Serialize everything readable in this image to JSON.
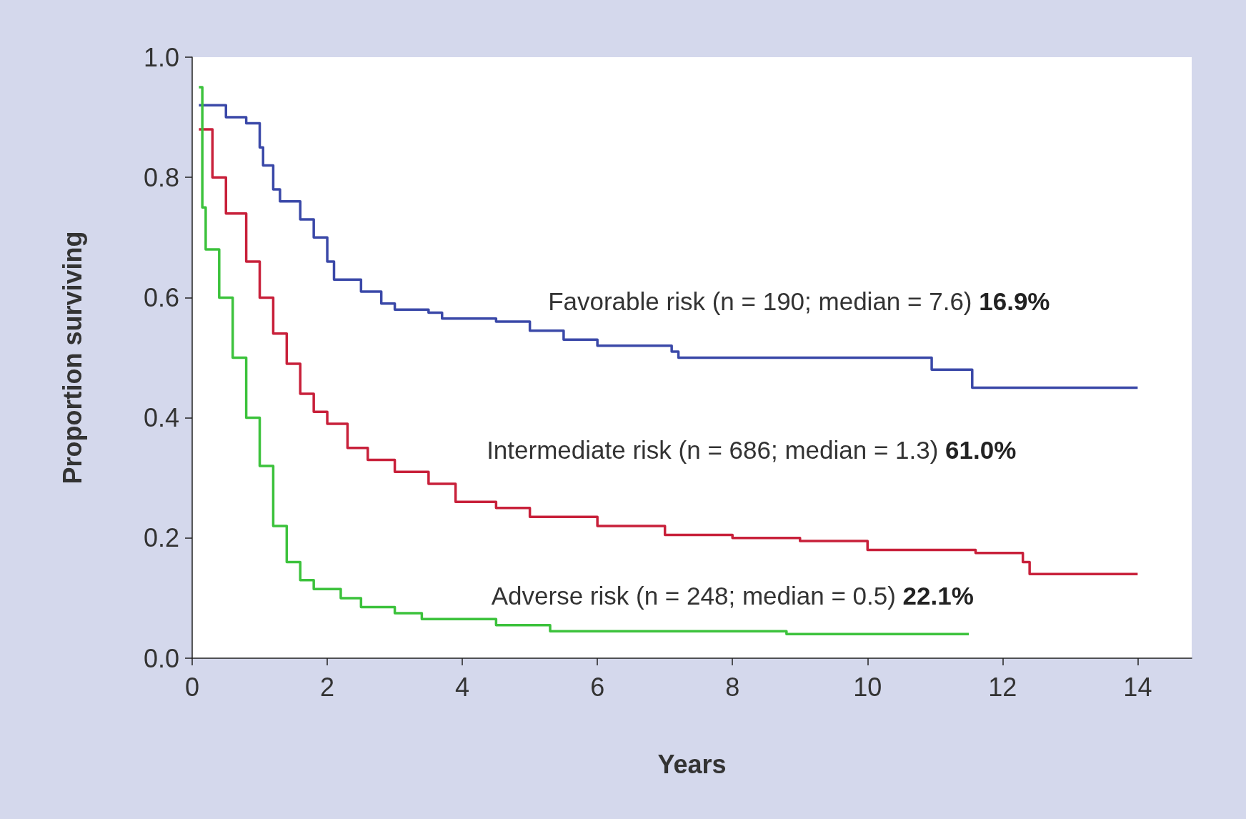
{
  "chart_data": {
    "type": "step",
    "xlabel": "Years",
    "ylabel": "Proportion surviving",
    "xlim": [
      0,
      14.8
    ],
    "xticks": [
      0,
      2,
      4,
      6,
      8,
      10,
      12,
      14
    ],
    "ylim": [
      0,
      1
    ],
    "yticks": [
      {
        "value": 0,
        "label": "0.0"
      },
      {
        "value": 0.2,
        "label": "0.2"
      },
      {
        "value": 0.4,
        "label": "0.4"
      },
      {
        "value": 0.6,
        "label": "0.6"
      },
      {
        "value": 0.8,
        "label": "0.8"
      },
      {
        "value": 1,
        "label": "1.0"
      }
    ],
    "grid": false,
    "marker": "none",
    "line_style": "solid",
    "series": [
      {
        "name": "Favorable risk (n = 190; median = 7.6) 16.9%",
        "color": "#3a48a8",
        "x": [
          0.1,
          0.35,
          0.5,
          0.8,
          1.0,
          1.05,
          1.2,
          1.3,
          1.6,
          1.8,
          2.0,
          2.1,
          2.5,
          2.8,
          3.0,
          3.5,
          3.7,
          4.5,
          5.0,
          5.5,
          6.0,
          7.1,
          7.2,
          10.9,
          10.95,
          11.5,
          11.55,
          14
        ],
        "values": [
          0.92,
          0.92,
          0.9,
          0.89,
          0.85,
          0.82,
          0.78,
          0.76,
          0.73,
          0.7,
          0.66,
          0.63,
          0.61,
          0.59,
          0.58,
          0.575,
          0.565,
          0.56,
          0.545,
          0.53,
          0.52,
          0.51,
          0.5,
          0.5,
          0.48,
          0.48,
          0.45,
          0.45
        ]
      },
      {
        "name": "Intermediate risk (n = 686; median = 1.3) 61.0%",
        "color": "#c8203a",
        "x": [
          0.1,
          0.3,
          0.5,
          0.8,
          1.0,
          1.2,
          1.4,
          1.6,
          1.8,
          2.0,
          2.3,
          2.6,
          3.0,
          3.5,
          3.9,
          4.5,
          5.0,
          6.0,
          7.0,
          8.0,
          9.0,
          10.0,
          11.6,
          12.3,
          12.4,
          14
        ],
        "values": [
          0.88,
          0.8,
          0.74,
          0.66,
          0.6,
          0.54,
          0.49,
          0.44,
          0.41,
          0.39,
          0.35,
          0.33,
          0.31,
          0.29,
          0.26,
          0.25,
          0.235,
          0.22,
          0.205,
          0.2,
          0.195,
          0.18,
          0.175,
          0.16,
          0.14,
          0.14
        ]
      },
      {
        "name": "Adverse risk (n = 248; median = 0.5) 22.1%",
        "color": "#3cc23c",
        "x": [
          0.1,
          0.15,
          0.2,
          0.4,
          0.6,
          0.8,
          1.0,
          1.2,
          1.4,
          1.6,
          1.8,
          2.2,
          2.5,
          3.0,
          3.4,
          4.5,
          5.3,
          8.8,
          11.5
        ],
        "values": [
          0.95,
          0.75,
          0.68,
          0.6,
          0.5,
          0.4,
          0.32,
          0.22,
          0.16,
          0.13,
          0.115,
          0.1,
          0.085,
          0.075,
          0.065,
          0.055,
          0.045,
          0.04,
          0.04
        ]
      }
    ]
  }
}
